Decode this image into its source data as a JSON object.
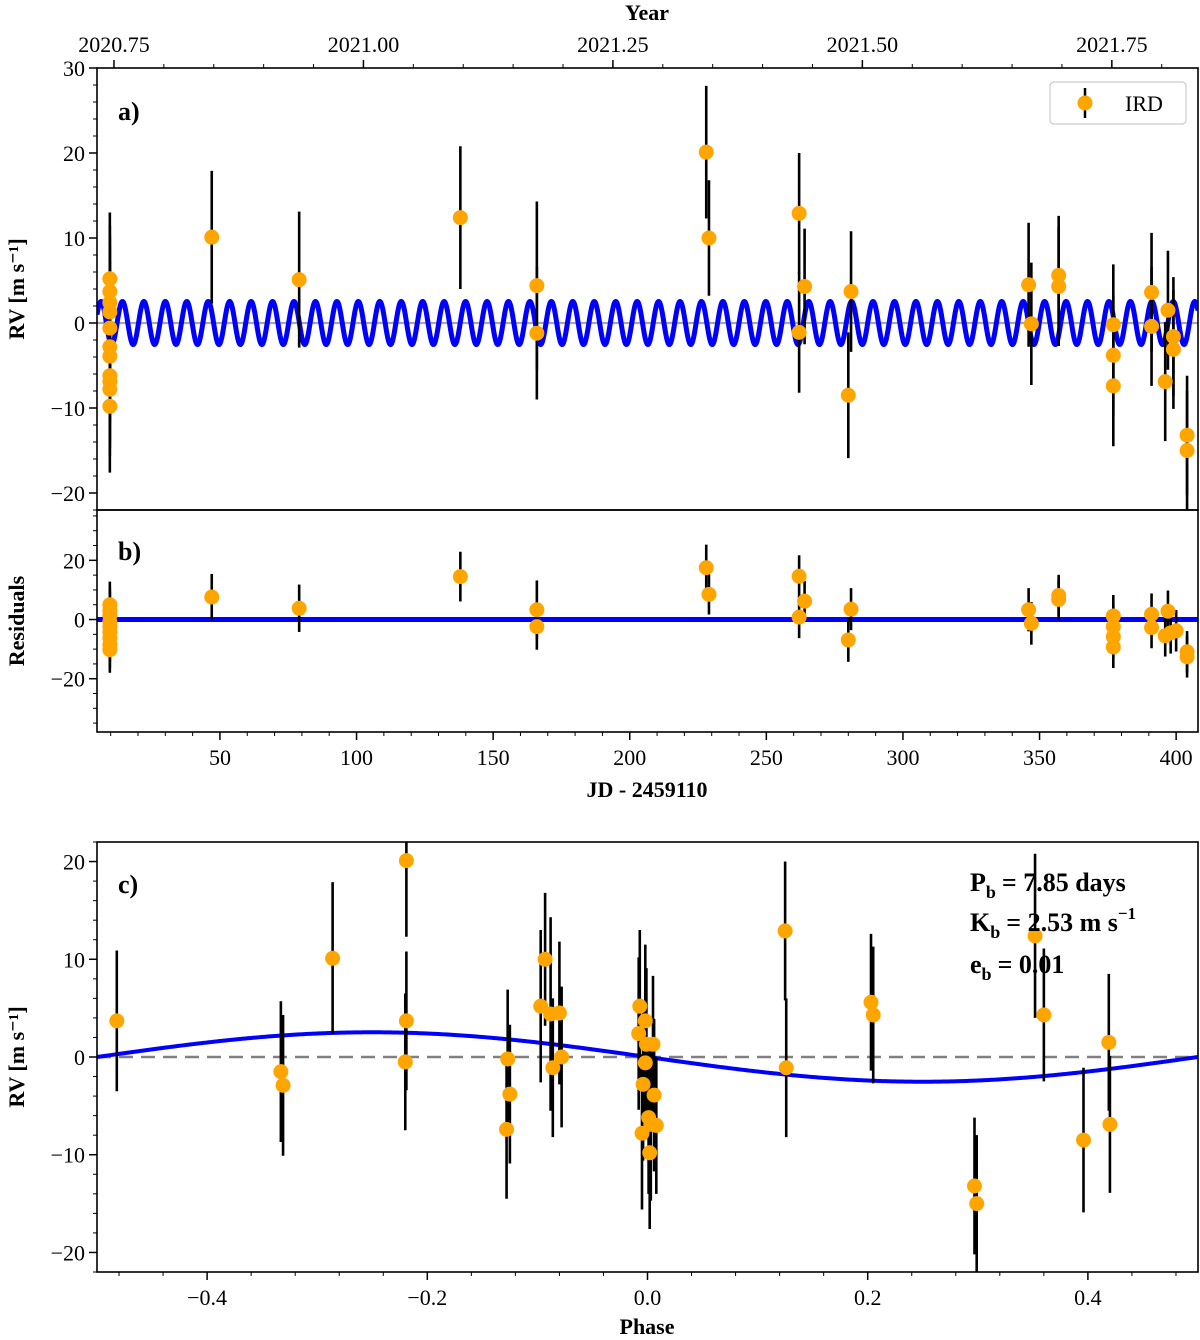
{
  "chart_data": [
    {
      "panel": "a)",
      "type": "scatter",
      "xlabel": "",
      "ylabel": "RV [m s⁻¹]",
      "top_xlabel": "Year",
      "top_xticks": [
        "2020.75",
        "2021.00",
        "2021.25",
        "2021.50",
        "2021.75"
      ],
      "top_xtick_values": [
        2020.75,
        2021.0,
        2021.25,
        2021.5,
        2021.75
      ],
      "xlim": [
        5,
        408
      ],
      "ylim": [
        -22,
        30
      ],
      "yticks": [
        -20,
        -10,
        0,
        10,
        20,
        30
      ],
      "legend": {
        "label": "IRD",
        "placement": "top-right"
      },
      "series": [
        {
          "name": "IRD",
          "kind": "errorbar-points",
          "color": "#FFA500",
          "points": [
            [
              9.7,
              5.2,
              7.8
            ],
            [
              9.7,
              3.7,
              7.8
            ],
            [
              9.7,
              2.4,
              7.8
            ],
            [
              9.7,
              1.3,
              7.8
            ],
            [
              9.7,
              -0.6,
              7.8
            ],
            [
              9.7,
              -2.8,
              7.8
            ],
            [
              9.7,
              -3.9,
              7.8
            ],
            [
              9.7,
              -6.2,
              7.8
            ],
            [
              9.7,
              -6.9,
              7.8
            ],
            [
              9.7,
              -7.8,
              7.8
            ],
            [
              9.7,
              -9.8,
              7.8
            ],
            [
              47,
              10.1,
              7.8
            ],
            [
              79,
              5.1,
              8.0
            ],
            [
              138,
              12.4,
              8.4
            ],
            [
              166,
              4.4,
              9.9
            ],
            [
              166,
              -1.2,
              7.8
            ],
            [
              228,
              20.1,
              7.8
            ],
            [
              229,
              10.0,
              6.8
            ],
            [
              262,
              12.9,
              7.1
            ],
            [
              262,
              -1.1,
              7.1
            ],
            [
              264,
              4.3,
              6.8
            ],
            [
              280,
              -8.5,
              7.4
            ],
            [
              281,
              3.7,
              7.1
            ],
            [
              346,
              4.5,
              7.3
            ],
            [
              347,
              -0.1,
              7.2
            ],
            [
              357,
              5.6,
              7.0
            ],
            [
              357,
              4.3,
              7.0
            ],
            [
              377,
              -0.2,
              7.1
            ],
            [
              377,
              -3.8,
              7.1
            ],
            [
              377,
              -7.4,
              7.1
            ],
            [
              391,
              3.6,
              7.0
            ],
            [
              391,
              -0.4,
              7.0
            ],
            [
              396,
              -6.9,
              7.0
            ],
            [
              397,
              1.5,
              7.0
            ],
            [
              399,
              -1.6,
              7.0
            ],
            [
              399,
              -3.1,
              7.0
            ],
            [
              404,
              -13.2,
              7.0
            ],
            [
              404,
              -15.0,
              7.0
            ]
          ]
        },
        {
          "name": "",
          "kind": "keplerian-model",
          "color": "#0000FF",
          "period_days": 7.85,
          "K": 2.53,
          "e": 0.01
        }
      ],
      "zero_line": {
        "color": "#A9A9A9",
        "style": "solid"
      },
      "grid": false
    },
    {
      "panel": "b)",
      "type": "scatter",
      "xlabel": "JD - 2459110",
      "ylabel": "Residuals",
      "xlim": [
        5,
        408
      ],
      "ylim": [
        -38,
        37
      ],
      "xticks": [
        50,
        100,
        150,
        200,
        250,
        300,
        350,
        400
      ],
      "yticks": [
        -20,
        0,
        20
      ],
      "series": [
        {
          "name": "IRD",
          "kind": "errorbar-points",
          "color": "#FFA500",
          "points": [
            [
              9.7,
              5.0,
              7.8
            ],
            [
              9.7,
              3.0,
              7.8
            ],
            [
              9.7,
              1.4,
              7.8
            ],
            [
              9.7,
              -0.8,
              7.8
            ],
            [
              9.7,
              -2.5,
              7.8
            ],
            [
              9.7,
              -4.3,
              7.8
            ],
            [
              9.7,
              -6.3,
              7.8
            ],
            [
              9.7,
              -8.5,
              7.8
            ],
            [
              9.7,
              -10.2,
              7.8
            ],
            [
              47,
              7.6,
              7.8
            ],
            [
              79,
              3.8,
              8.0
            ],
            [
              138,
              14.5,
              8.4
            ],
            [
              166,
              3.3,
              9.9
            ],
            [
              166,
              -2.4,
              7.8
            ],
            [
              228,
              17.5,
              7.8
            ],
            [
              229,
              8.5,
              6.8
            ],
            [
              262,
              14.6,
              7.1
            ],
            [
              262,
              0.8,
              7.1
            ],
            [
              264,
              6.2,
              6.8
            ],
            [
              280,
              -6.9,
              7.4
            ],
            [
              281,
              3.5,
              7.1
            ],
            [
              346,
              3.3,
              7.3
            ],
            [
              347,
              -1.3,
              7.2
            ],
            [
              357,
              8.1,
              7.0
            ],
            [
              357,
              6.8,
              7.0
            ],
            [
              377,
              1.2,
              7.1
            ],
            [
              377,
              -2.4,
              7.1
            ],
            [
              377,
              -5.8,
              7.1
            ],
            [
              377,
              -9.3,
              7.1
            ],
            [
              391,
              1.8,
              7.0
            ],
            [
              391,
              -2.7,
              7.0
            ],
            [
              396,
              -5.5,
              7.0
            ],
            [
              397,
              2.8,
              7.0
            ],
            [
              398,
              -4.5,
              7.0
            ],
            [
              400,
              -3.8,
              7.0
            ],
            [
              404,
              -10.9,
              7.0
            ],
            [
              404,
              -12.6,
              7.0
            ]
          ]
        },
        {
          "name": "",
          "kind": "zero-line",
          "color": "#0000FF"
        }
      ],
      "grid": false
    },
    {
      "panel": "c)",
      "type": "scatter",
      "xlabel": "Phase",
      "ylabel": "RV [m s⁻¹]",
      "xlim": [
        -0.5,
        0.5
      ],
      "ylim": [
        -22,
        22
      ],
      "xticks": [
        -0.4,
        -0.2,
        0.0,
        0.2,
        0.4
      ],
      "xtick_labels": [
        "−0.4",
        "−0.2",
        "0.0",
        "0.2",
        "0.4"
      ],
      "yticks": [
        -20,
        -10,
        0,
        10,
        20
      ],
      "annotation": {
        "P": "= 7.85 days",
        "K": "= 2.53 m s",
        "e": "= 0.01",
        "sub": "b",
        "K_exp": "−1"
      },
      "series": [
        {
          "name": "IRD",
          "kind": "errorbar-points",
          "color": "#FFA500",
          "points": [
            [
              -0.482,
              3.7,
              7.2
            ],
            [
              -0.333,
              -1.5,
              7.2
            ],
            [
              -0.331,
              -2.9,
              7.2
            ],
            [
              -0.286,
              10.1,
              7.8
            ],
            [
              -0.219,
              20.1,
              7.8
            ],
            [
              -0.219,
              3.7,
              7.1
            ],
            [
              -0.22,
              -0.5,
              7.0
            ],
            [
              -0.127,
              -0.2,
              7.1
            ],
            [
              -0.125,
              -3.8,
              7.1
            ],
            [
              -0.128,
              -7.4,
              7.1
            ],
            [
              -0.097,
              5.2,
              7.8
            ],
            [
              -0.093,
              10.0,
              6.8
            ],
            [
              -0.088,
              4.4,
              9.9
            ],
            [
              -0.086,
              -1.1,
              7.1
            ],
            [
              -0.08,
              4.5,
              7.3
            ],
            [
              -0.078,
              0.0,
              7.2
            ],
            [
              -0.007,
              5.2,
              7.8
            ],
            [
              -0.008,
              2.4,
              7.8
            ],
            [
              -0.004,
              -2.8,
              7.8
            ],
            [
              -0.005,
              -7.8,
              7.8
            ],
            [
              -0.002,
              3.7,
              7.8
            ],
            [
              -0.001,
              1.3,
              7.8
            ],
            [
              -0.002,
              -0.6,
              7.8
            ],
            [
              0.001,
              -6.2,
              7.8
            ],
            [
              0.003,
              -6.9,
              7.8
            ],
            [
              0.002,
              -9.8,
              7.8
            ],
            [
              0.005,
              1.3,
              7.0
            ],
            [
              0.006,
              -3.9,
              7.8
            ],
            [
              0.008,
              -7.0,
              7.0
            ],
            [
              0.125,
              12.9,
              7.1
            ],
            [
              0.126,
              -1.1,
              7.1
            ],
            [
              0.203,
              5.6,
              7.0
            ],
            [
              0.205,
              4.3,
              7.0
            ],
            [
              0.297,
              -13.2,
              7.0
            ],
            [
              0.299,
              -15.0,
              7.0
            ],
            [
              0.352,
              12.4,
              8.4
            ],
            [
              0.36,
              4.3,
              6.8
            ],
            [
              0.396,
              -8.5,
              7.4
            ],
            [
              0.419,
              1.5,
              7.0
            ],
            [
              0.42,
              -6.9,
              7.0
            ]
          ]
        },
        {
          "name": "",
          "kind": "keplerian-model",
          "color": "#0000FF",
          "K": 2.53
        },
        {
          "name": "",
          "kind": "zero-line",
          "color": "#808080",
          "style": "dashed"
        }
      ],
      "grid": false
    }
  ]
}
